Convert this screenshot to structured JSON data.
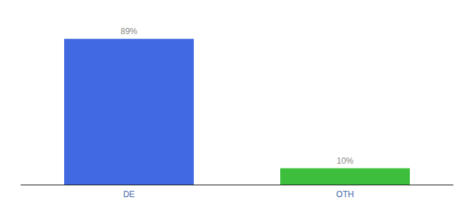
{
  "chart_data": {
    "type": "bar",
    "categories": [
      "DE",
      "OTH"
    ],
    "values": [
      89,
      10
    ],
    "value_labels": [
      "89%",
      "10%"
    ],
    "colors": [
      "#4169e1",
      "#3dbf3d"
    ],
    "ylim": [
      0,
      100
    ],
    "data_labels": true,
    "tick_labels": "x",
    "grid": false
  }
}
